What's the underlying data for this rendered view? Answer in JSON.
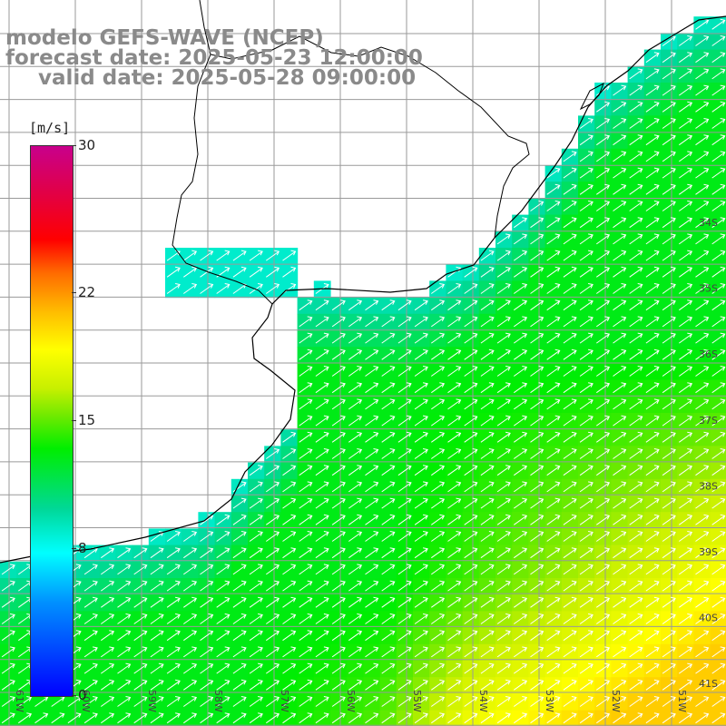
{
  "title": {
    "line1": "modelo GEFS-WAVE (NCEP)",
    "line2": "forecast date: 2025-05-23 12:00:00",
    "line3": "valid date: 2025-05-28 09:00:00"
  },
  "colorbar": {
    "unit": "[m/s]",
    "ticks": [
      "30",
      "22",
      "15",
      "8",
      "0"
    ],
    "tick_values": [
      30,
      22,
      15,
      8,
      0
    ],
    "range": [
      0,
      30
    ]
  },
  "axes": {
    "lat_labels": [
      "34S",
      "35S",
      "36S",
      "37S",
      "38S",
      "39S",
      "40S",
      "41S"
    ],
    "lon_labels": [
      "61W",
      "60W",
      "59W",
      "58W",
      "57W",
      "56W",
      "55W",
      "54W",
      "53W",
      "52W",
      "51W"
    ]
  },
  "field": {
    "variable": "wind speed",
    "wind_direction": "from southwest (arrows pointing northeast)",
    "coastal_speed_ms": 9,
    "open_ocean_speed_ms": 13,
    "southeast_max_speed_ms": 19
  },
  "colors": {
    "land": "#ffffff",
    "grid": "#9a9a9a",
    "coast": "#000000",
    "arrow": "#ffffff",
    "title": "#8a8a8a"
  }
}
